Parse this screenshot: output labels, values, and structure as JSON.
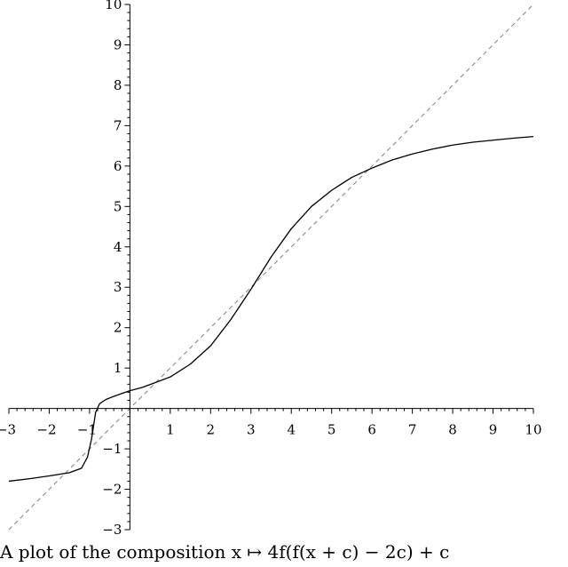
{
  "caption": "A plot of the composition x ↦ 4f(f(x + c) − 2c) + c",
  "chart_data": {
    "type": "line",
    "title": "",
    "xlabel": "",
    "ylabel": "",
    "xlim": [
      -3,
      10
    ],
    "ylim": [
      -3,
      10
    ],
    "grid": false,
    "legend": "none",
    "x_ticks": [
      -3,
      -2,
      -1,
      1,
      2,
      3,
      4,
      5,
      6,
      7,
      8,
      9,
      10
    ],
    "y_ticks": [
      -3,
      -2,
      -1,
      1,
      2,
      3,
      4,
      5,
      6,
      7,
      8,
      9,
      10
    ],
    "series": [
      {
        "style": "solid",
        "color": "#000000",
        "x": [
          -3,
          -2.5,
          -2,
          -1.5,
          -1.2,
          -1.05,
          -0.95,
          -0.85,
          -0.75,
          -0.6,
          -0.4,
          -0.2,
          0,
          0.3,
          0.6,
          1,
          1.5,
          2,
          2.5,
          3,
          3.5,
          4,
          4.5,
          5,
          5.5,
          6,
          6.5,
          7,
          7.5,
          8,
          8.5,
          9,
          9.5,
          10
        ],
        "y": [
          -1.8,
          -1.74,
          -1.67,
          -1.59,
          -1.48,
          -1.2,
          -0.75,
          -0.1,
          0.12,
          0.22,
          0.3,
          0.37,
          0.44,
          0.52,
          0.63,
          0.78,
          1.1,
          1.55,
          2.2,
          2.95,
          3.75,
          4.45,
          5.0,
          5.4,
          5.72,
          5.95,
          6.15,
          6.3,
          6.42,
          6.52,
          6.59,
          6.64,
          6.69,
          6.73
        ]
      },
      {
        "style": "dashed",
        "color": "#808080",
        "x": [
          -3,
          10
        ],
        "y": [
          -3,
          10
        ]
      }
    ]
  }
}
